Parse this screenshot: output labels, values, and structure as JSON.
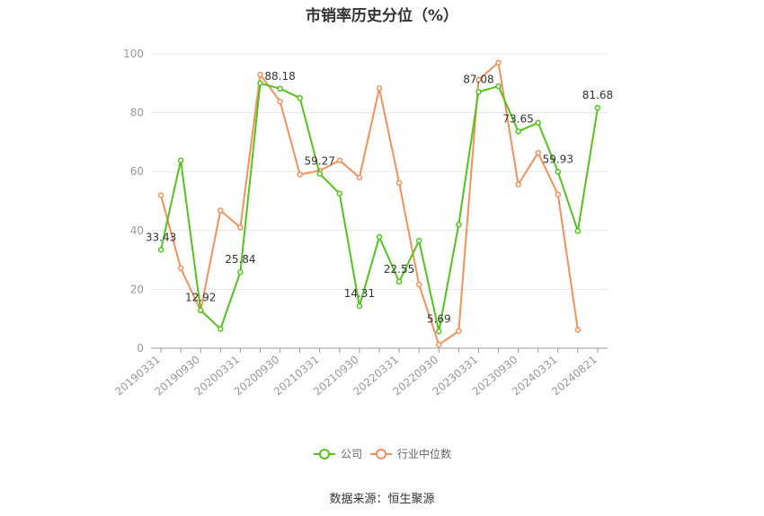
{
  "chart_data": {
    "type": "line",
    "title": "市销率历史分位（%）",
    "source": "数据来源：恒生聚源",
    "ylim": [
      0,
      100
    ],
    "yticks": [
      0,
      20,
      40,
      60,
      80,
      100
    ],
    "grid": true,
    "legend_position": "bottom-center",
    "x_tick_labels": [
      "20190331",
      "20190930",
      "20200331",
      "20200930",
      "20210331",
      "20210930",
      "20220331",
      "20220930",
      "20230331",
      "20230930",
      "20240331",
      "20240821"
    ],
    "x": [
      "20190331",
      "20190630",
      "20190930",
      "20191231",
      "20200331",
      "20200630",
      "20200930",
      "20201231",
      "20210331",
      "20210630",
      "20210930",
      "20211231",
      "20220331",
      "20220630",
      "20220930",
      "20221231",
      "20230331",
      "20230630",
      "20230930",
      "20231231",
      "20240331",
      "20240630",
      "20240821"
    ],
    "series": [
      {
        "name": "公司",
        "color": "#52c41a",
        "values": [
          33.43,
          63.8,
          12.92,
          6.5,
          25.84,
          90.0,
          88.18,
          85.0,
          59.27,
          52.5,
          14.31,
          37.8,
          22.55,
          36.5,
          5.69,
          42.0,
          87.08,
          89.0,
          73.65,
          76.6,
          59.93,
          39.8,
          81.68
        ],
        "labels": {
          "0": "33.43",
          "2": "12.92",
          "4": "25.84",
          "6": "88.18",
          "8": "59.27",
          "10": "14.31",
          "12": "22.55",
          "14": "5.69",
          "16": "87.08",
          "18": "73.65",
          "20": "59.93",
          "22": "81.68"
        }
      },
      {
        "name": "行业中位数",
        "color": "#f4905a",
        "values": [
          52.0,
          27.2,
          12.8,
          46.8,
          41.0,
          93.0,
          83.8,
          59.0,
          60.3,
          63.8,
          58.0,
          88.3,
          56.2,
          21.6,
          1.2,
          5.8,
          91.2,
          97.0,
          55.6,
          66.4,
          52.2,
          6.2,
          null
        ]
      }
    ]
  }
}
